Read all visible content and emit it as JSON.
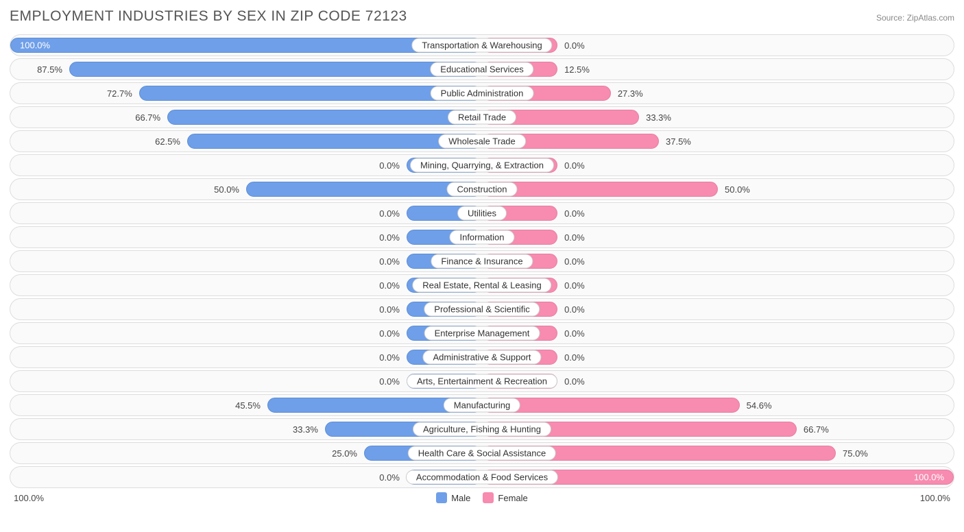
{
  "title": "EMPLOYMENT INDUSTRIES BY SEX IN ZIP CODE 72123",
  "source": "Source: ZipAtlas.com",
  "chart": {
    "type": "diverging-bar",
    "male_color": "#6f9fe8",
    "female_color": "#f78bb0",
    "row_bg": "#fafafa",
    "row_border": "#dddddd",
    "min_bar_pct": 16,
    "rows": [
      {
        "label": "Transportation & Warehousing",
        "male": 100.0,
        "female": 0.0,
        "male_txt": "100.0%",
        "female_txt": "0.0%"
      },
      {
        "label": "Educational Services",
        "male": 87.5,
        "female": 12.5,
        "male_txt": "87.5%",
        "female_txt": "12.5%"
      },
      {
        "label": "Public Administration",
        "male": 72.7,
        "female": 27.3,
        "male_txt": "72.7%",
        "female_txt": "27.3%"
      },
      {
        "label": "Retail Trade",
        "male": 66.7,
        "female": 33.3,
        "male_txt": "66.7%",
        "female_txt": "33.3%"
      },
      {
        "label": "Wholesale Trade",
        "male": 62.5,
        "female": 37.5,
        "male_txt": "62.5%",
        "female_txt": "37.5%"
      },
      {
        "label": "Mining, Quarrying, & Extraction",
        "male": 0.0,
        "female": 0.0,
        "male_txt": "0.0%",
        "female_txt": "0.0%"
      },
      {
        "label": "Construction",
        "male": 50.0,
        "female": 50.0,
        "male_txt": "50.0%",
        "female_txt": "50.0%"
      },
      {
        "label": "Utilities",
        "male": 0.0,
        "female": 0.0,
        "male_txt": "0.0%",
        "female_txt": "0.0%"
      },
      {
        "label": "Information",
        "male": 0.0,
        "female": 0.0,
        "male_txt": "0.0%",
        "female_txt": "0.0%"
      },
      {
        "label": "Finance & Insurance",
        "male": 0.0,
        "female": 0.0,
        "male_txt": "0.0%",
        "female_txt": "0.0%"
      },
      {
        "label": "Real Estate, Rental & Leasing",
        "male": 0.0,
        "female": 0.0,
        "male_txt": "0.0%",
        "female_txt": "0.0%"
      },
      {
        "label": "Professional & Scientific",
        "male": 0.0,
        "female": 0.0,
        "male_txt": "0.0%",
        "female_txt": "0.0%"
      },
      {
        "label": "Enterprise Management",
        "male": 0.0,
        "female": 0.0,
        "male_txt": "0.0%",
        "female_txt": "0.0%"
      },
      {
        "label": "Administrative & Support",
        "male": 0.0,
        "female": 0.0,
        "male_txt": "0.0%",
        "female_txt": "0.0%"
      },
      {
        "label": "Arts, Entertainment & Recreation",
        "male": 0.0,
        "female": 0.0,
        "male_txt": "0.0%",
        "female_txt": "0.0%"
      },
      {
        "label": "Manufacturing",
        "male": 45.5,
        "female": 54.6,
        "male_txt": "45.5%",
        "female_txt": "54.6%"
      },
      {
        "label": "Agriculture, Fishing & Hunting",
        "male": 33.3,
        "female": 66.7,
        "male_txt": "33.3%",
        "female_txt": "66.7%"
      },
      {
        "label": "Health Care & Social Assistance",
        "male": 25.0,
        "female": 75.0,
        "male_txt": "25.0%",
        "female_txt": "75.0%"
      },
      {
        "label": "Accommodation & Food Services",
        "male": 0.0,
        "female": 100.0,
        "male_txt": "0.0%",
        "female_txt": "100.0%"
      }
    ]
  },
  "axis": {
    "left": "100.0%",
    "right": "100.0%"
  },
  "legend": {
    "male": "Male",
    "female": "Female"
  }
}
